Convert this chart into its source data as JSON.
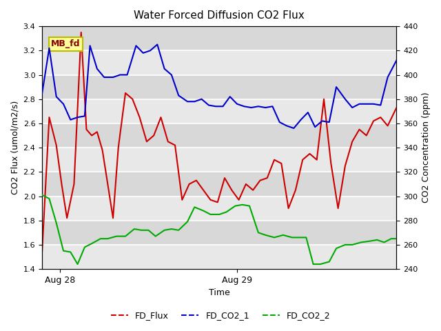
{
  "title": "Water Forced Diffusion CO2 Flux",
  "xlabel": "Time",
  "ylabel_left": "CO2 Flux (umol/m2/s)",
  "ylabel_right": "CO2 Concentration (ppm)",
  "ylim_left": [
    1.4,
    3.4
  ],
  "ylim_right": [
    240,
    440
  ],
  "xtick_labels": [
    "Aug 28",
    "Aug 29"
  ],
  "xtick_positions": [
    0.05,
    0.55
  ],
  "legend_label": "MB_fd",
  "bg_color": "#e0e0e0",
  "band_color1": "#d8d8d8",
  "band_color2": "#e8e8e8",
  "grid_color": "white",
  "series": {
    "FD_Flux": {
      "color": "#cc0000",
      "x": [
        0.0,
        0.02,
        0.04,
        0.055,
        0.07,
        0.09,
        0.11,
        0.125,
        0.14,
        0.155,
        0.17,
        0.185,
        0.2,
        0.215,
        0.235,
        0.255,
        0.275,
        0.295,
        0.315,
        0.335,
        0.355,
        0.375,
        0.395,
        0.415,
        0.435,
        0.455,
        0.475,
        0.495,
        0.515,
        0.535,
        0.555,
        0.575,
        0.595,
        0.615,
        0.635,
        0.655,
        0.675,
        0.695,
        0.715,
        0.735,
        0.755,
        0.775,
        0.795,
        0.815,
        0.835,
        0.855,
        0.875,
        0.895,
        0.915,
        0.935,
        0.955,
        0.975,
        1.0
      ],
      "y": [
        1.55,
        2.65,
        2.42,
        2.1,
        1.82,
        2.1,
        3.35,
        2.55,
        2.5,
        2.53,
        2.38,
        2.1,
        1.82,
        2.4,
        2.85,
        2.8,
        2.65,
        2.45,
        2.5,
        2.65,
        2.45,
        2.42,
        1.97,
        2.1,
        2.13,
        2.05,
        1.97,
        1.95,
        2.15,
        2.05,
        1.97,
        2.1,
        2.05,
        2.13,
        2.15,
        2.3,
        2.27,
        1.9,
        2.05,
        2.3,
        2.35,
        2.3,
        2.8,
        2.27,
        1.9,
        2.25,
        2.45,
        2.55,
        2.5,
        2.62,
        2.65,
        2.58,
        2.73
      ]
    },
    "FD_CO2_1": {
      "color": "#0000cc",
      "x": [
        0.0,
        0.02,
        0.04,
        0.06,
        0.08,
        0.1,
        0.12,
        0.135,
        0.155,
        0.175,
        0.2,
        0.22,
        0.24,
        0.265,
        0.285,
        0.305,
        0.325,
        0.345,
        0.365,
        0.385,
        0.41,
        0.43,
        0.45,
        0.47,
        0.49,
        0.51,
        0.53,
        0.55,
        0.57,
        0.59,
        0.61,
        0.63,
        0.65,
        0.67,
        0.69,
        0.71,
        0.73,
        0.75,
        0.77,
        0.79,
        0.81,
        0.83,
        0.855,
        0.875,
        0.895,
        0.915,
        0.935,
        0.955,
        0.975,
        1.0
      ],
      "y": [
        385,
        422,
        382,
        376,
        363,
        365,
        366,
        424,
        405,
        398,
        398,
        400,
        400,
        424,
        418,
        420,
        425,
        405,
        400,
        383,
        378,
        378,
        380,
        375,
        374,
        374,
        382,
        376,
        374,
        373,
        374,
        373,
        374,
        361,
        358,
        356,
        363,
        369,
        357,
        362,
        361,
        390,
        380,
        373,
        376,
        376,
        376,
        375,
        398,
        412
      ]
    },
    "FD_CO2_2": {
      "color": "#00aa00",
      "x": [
        0.0,
        0.02,
        0.04,
        0.06,
        0.08,
        0.1,
        0.12,
        0.14,
        0.165,
        0.185,
        0.21,
        0.235,
        0.26,
        0.28,
        0.3,
        0.32,
        0.345,
        0.365,
        0.385,
        0.41,
        0.43,
        0.455,
        0.475,
        0.5,
        0.52,
        0.545,
        0.565,
        0.585,
        0.61,
        0.63,
        0.655,
        0.68,
        0.705,
        0.725,
        0.745,
        0.765,
        0.785,
        0.81,
        0.83,
        0.855,
        0.875,
        0.9,
        0.925,
        0.945,
        0.965,
        0.985,
        1.0
      ],
      "y": [
        301,
        298,
        278,
        255,
        254,
        244,
        258,
        261,
        265,
        265,
        267,
        267,
        273,
        272,
        272,
        267,
        272,
        273,
        272,
        279,
        291,
        288,
        285,
        285,
        287,
        292,
        293,
        292,
        270,
        268,
        266,
        268,
        266,
        266,
        266,
        244,
        244,
        246,
        257,
        260,
        260,
        262,
        263,
        264,
        262,
        265,
        265
      ]
    }
  }
}
